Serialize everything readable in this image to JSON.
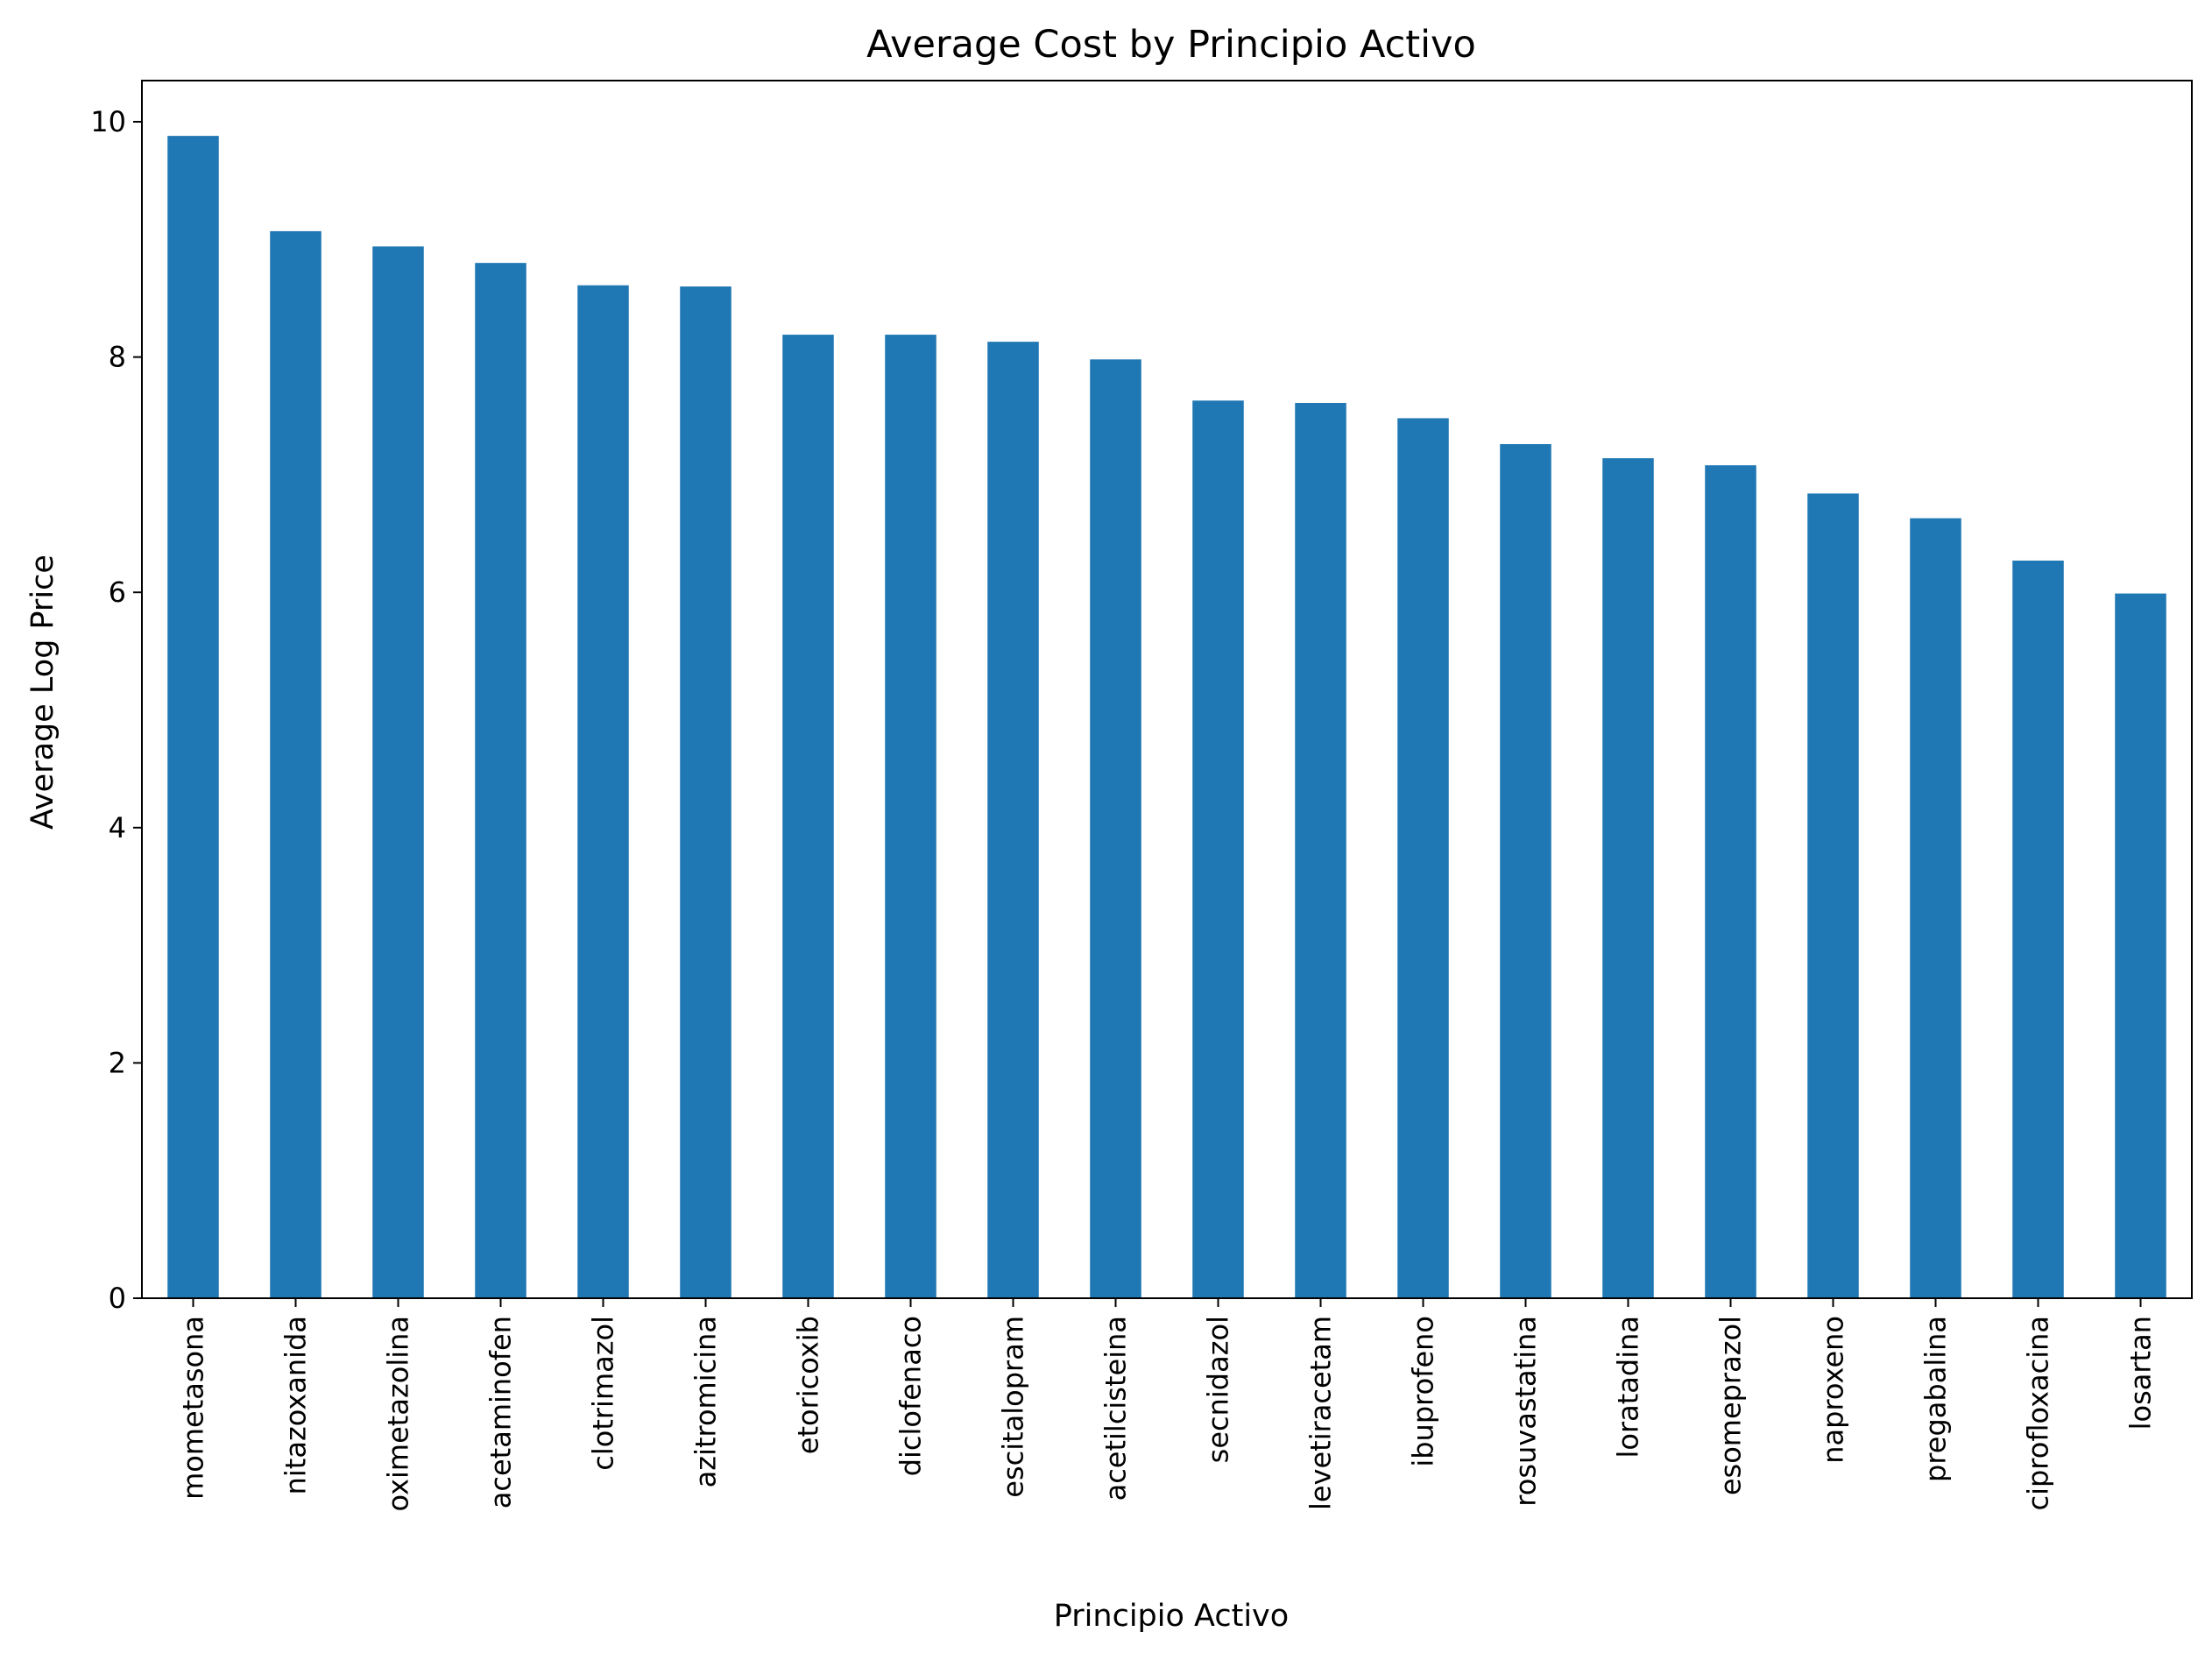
{
  "chart_data": {
    "type": "bar",
    "title": "Average Cost by Principio Activo",
    "xlabel": "Principio Activo",
    "ylabel": "Average Log Price",
    "ylim": [
      0,
      10.35
    ],
    "yticks": [
      0,
      2,
      4,
      6,
      8,
      10
    ],
    "grid": false,
    "legend": "none",
    "bar_color": "#1f77b4",
    "categories": [
      "mometasona",
      "nitazoxanida",
      "oximetazolina",
      "acetaminofen",
      "clotrimazol",
      "azitromicina",
      "etoricoxib",
      "diclofenaco",
      "escitalopram",
      "acetilcisteina",
      "secnidazol",
      "levetiracetam",
      "ibuprofeno",
      "rosuvastatina",
      "loratadina",
      "esomeprazol",
      "naproxeno",
      "pregabalina",
      "ciprofloxacina",
      "losartan"
    ],
    "values": [
      9.88,
      9.07,
      8.94,
      8.8,
      8.61,
      8.6,
      8.19,
      8.19,
      8.13,
      7.98,
      7.63,
      7.61,
      7.48,
      7.26,
      7.14,
      7.08,
      6.84,
      6.63,
      6.27,
      5.99
    ]
  }
}
